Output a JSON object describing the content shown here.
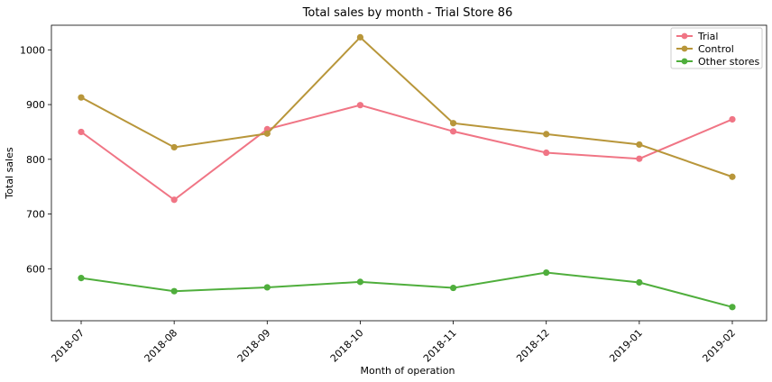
{
  "chart_data": {
    "type": "line",
    "title": "Total sales by month - Trial Store 86",
    "xlabel": "Month of operation",
    "ylabel": "Total sales",
    "categories": [
      "2018-07",
      "2018-08",
      "2018-09",
      "2018-10",
      "2018-11",
      "2018-12",
      "2019-01",
      "2019-02"
    ],
    "ylim": [
      505,
      1045
    ],
    "yticks": [
      600,
      700,
      800,
      900,
      1000
    ],
    "grid": false,
    "legend_position": "top-right",
    "series": [
      {
        "name": "Trial",
        "color": "#f07585",
        "values": [
          850,
          726,
          855,
          899,
          851,
          812,
          801,
          873
        ]
      },
      {
        "name": "Control",
        "color": "#b8963a",
        "values": [
          913,
          822,
          847,
          1023,
          866,
          846,
          827,
          768
        ]
      },
      {
        "name": "Other stores",
        "color": "#4fae3c",
        "values": [
          583,
          559,
          566,
          576,
          565,
          593,
          575,
          530
        ]
      }
    ]
  }
}
